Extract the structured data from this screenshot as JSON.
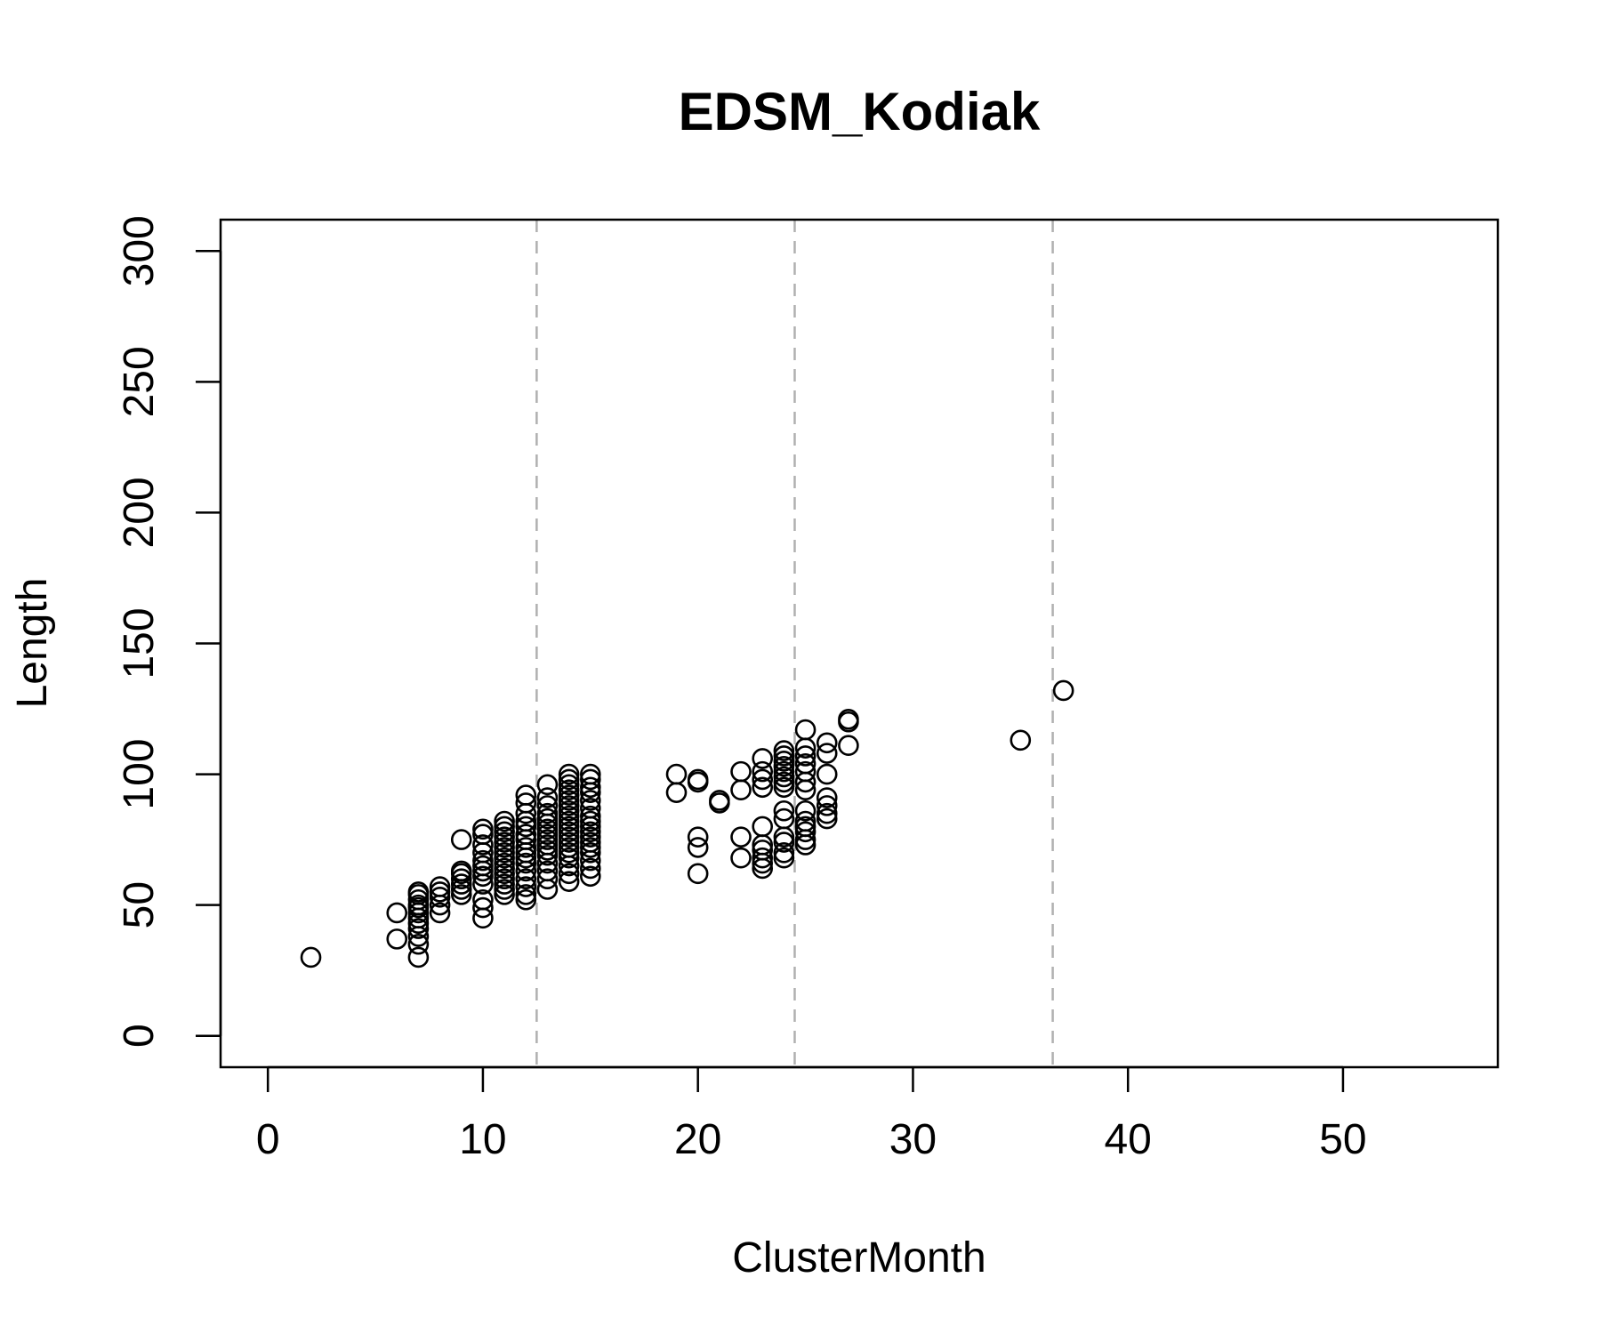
{
  "chart_data": {
    "type": "scatter",
    "title": "EDSM_Kodiak",
    "xlabel": "ClusterMonth",
    "ylabel": "Length",
    "xlim": [
      -2.2,
      57.2
    ],
    "ylim": [
      -12,
      312
    ],
    "x_ticks": [
      "0",
      "10",
      "20",
      "30",
      "40",
      "50"
    ],
    "y_ticks": [
      "0",
      "50",
      "100",
      "150",
      "200",
      "250",
      "300"
    ],
    "reference_lines_x": [
      12.5,
      24.5,
      36.5
    ],
    "reference_line_color": "#b0b0b0",
    "grid": false,
    "marker": "open-circle",
    "points": [
      [
        2,
        30
      ],
      [
        6,
        37
      ],
      [
        6,
        47
      ],
      [
        7,
        30
      ],
      [
        7,
        35
      ],
      [
        7,
        38
      ],
      [
        7,
        41
      ],
      [
        7,
        43
      ],
      [
        7,
        45
      ],
      [
        7,
        47
      ],
      [
        7,
        49
      ],
      [
        7,
        50
      ],
      [
        7,
        52
      ],
      [
        7,
        54
      ],
      [
        7,
        55
      ],
      [
        8,
        47
      ],
      [
        8,
        50
      ],
      [
        8,
        53
      ],
      [
        8,
        55
      ],
      [
        8,
        57
      ],
      [
        9,
        54
      ],
      [
        9,
        56
      ],
      [
        9,
        58
      ],
      [
        9,
        60
      ],
      [
        9,
        62
      ],
      [
        9,
        63
      ],
      [
        9,
        75
      ],
      [
        10,
        45
      ],
      [
        10,
        49
      ],
      [
        10,
        52
      ],
      [
        10,
        58
      ],
      [
        10,
        61
      ],
      [
        10,
        63
      ],
      [
        10,
        65
      ],
      [
        10,
        67
      ],
      [
        10,
        70
      ],
      [
        10,
        73
      ],
      [
        10,
        77
      ],
      [
        10,
        79
      ],
      [
        11,
        54
      ],
      [
        11,
        56
      ],
      [
        11,
        58
      ],
      [
        11,
        60
      ],
      [
        11,
        62
      ],
      [
        11,
        64
      ],
      [
        11,
        66
      ],
      [
        11,
        68
      ],
      [
        11,
        70
      ],
      [
        11,
        72
      ],
      [
        11,
        74
      ],
      [
        11,
        76
      ],
      [
        11,
        78
      ],
      [
        11,
        80
      ],
      [
        11,
        82
      ],
      [
        12,
        52
      ],
      [
        12,
        54
      ],
      [
        12,
        57
      ],
      [
        12,
        60
      ],
      [
        12,
        63
      ],
      [
        12,
        66
      ],
      [
        12,
        68
      ],
      [
        12,
        70
      ],
      [
        12,
        72
      ],
      [
        12,
        75
      ],
      [
        12,
        77
      ],
      [
        12,
        80
      ],
      [
        12,
        82
      ],
      [
        12,
        85
      ],
      [
        12,
        89
      ],
      [
        12,
        92
      ],
      [
        13,
        56
      ],
      [
        13,
        60
      ],
      [
        13,
        63
      ],
      [
        13,
        66
      ],
      [
        13,
        69
      ],
      [
        13,
        71
      ],
      [
        13,
        73
      ],
      [
        13,
        75
      ],
      [
        13,
        77
      ],
      [
        13,
        79
      ],
      [
        13,
        81
      ],
      [
        13,
        83
      ],
      [
        13,
        85
      ],
      [
        13,
        88
      ],
      [
        13,
        91
      ],
      [
        13,
        96
      ],
      [
        14,
        59
      ],
      [
        14,
        62
      ],
      [
        14,
        65
      ],
      [
        14,
        68
      ],
      [
        14,
        70
      ],
      [
        14,
        72
      ],
      [
        14,
        74
      ],
      [
        14,
        76
      ],
      [
        14,
        78
      ],
      [
        14,
        80
      ],
      [
        14,
        82
      ],
      [
        14,
        84
      ],
      [
        14,
        86
      ],
      [
        14,
        88
      ],
      [
        14,
        90
      ],
      [
        14,
        92
      ],
      [
        14,
        94
      ],
      [
        14,
        96
      ],
      [
        14,
        98
      ],
      [
        14,
        100
      ],
      [
        15,
        61
      ],
      [
        15,
        64
      ],
      [
        15,
        67
      ],
      [
        15,
        70
      ],
      [
        15,
        72
      ],
      [
        15,
        74
      ],
      [
        15,
        76
      ],
      [
        15,
        78
      ],
      [
        15,
        80
      ],
      [
        15,
        82
      ],
      [
        15,
        84
      ],
      [
        15,
        87
      ],
      [
        15,
        90
      ],
      [
        15,
        93
      ],
      [
        15,
        95
      ],
      [
        15,
        98
      ],
      [
        15,
        100
      ],
      [
        19,
        93
      ],
      [
        19,
        100
      ],
      [
        20,
        62
      ],
      [
        20,
        72
      ],
      [
        20,
        76
      ],
      [
        20,
        97
      ],
      [
        20,
        98
      ],
      [
        21,
        89
      ],
      [
        21,
        90
      ],
      [
        22,
        68
      ],
      [
        22,
        76
      ],
      [
        22,
        94
      ],
      [
        22,
        101
      ],
      [
        23,
        64
      ],
      [
        23,
        66
      ],
      [
        23,
        68
      ],
      [
        23,
        71
      ],
      [
        23,
        73
      ],
      [
        23,
        80
      ],
      [
        23,
        95
      ],
      [
        23,
        98
      ],
      [
        23,
        101
      ],
      [
        23,
        106
      ],
      [
        24,
        68
      ],
      [
        24,
        70
      ],
      [
        24,
        74
      ],
      [
        24,
        76
      ],
      [
        24,
        83
      ],
      [
        24,
        86
      ],
      [
        24,
        95
      ],
      [
        24,
        97
      ],
      [
        24,
        99
      ],
      [
        24,
        101
      ],
      [
        24,
        103
      ],
      [
        24,
        105
      ],
      [
        24,
        107
      ],
      [
        24,
        109
      ],
      [
        25,
        73
      ],
      [
        25,
        75
      ],
      [
        25,
        78
      ],
      [
        25,
        80
      ],
      [
        25,
        82
      ],
      [
        25,
        86
      ],
      [
        25,
        94
      ],
      [
        25,
        97
      ],
      [
        25,
        101
      ],
      [
        25,
        104
      ],
      [
        25,
        107
      ],
      [
        25,
        110
      ],
      [
        25,
        117
      ],
      [
        26,
        83
      ],
      [
        26,
        85
      ],
      [
        26,
        88
      ],
      [
        26,
        91
      ],
      [
        26,
        100
      ],
      [
        26,
        108
      ],
      [
        26,
        112
      ],
      [
        27,
        111
      ],
      [
        27,
        120
      ],
      [
        27,
        121
      ],
      [
        35,
        113
      ],
      [
        37,
        132
      ]
    ]
  }
}
